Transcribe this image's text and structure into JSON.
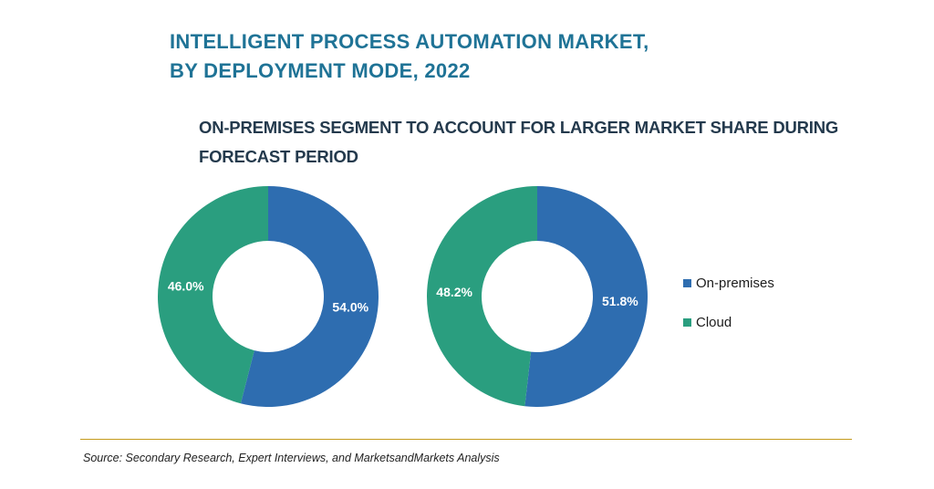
{
  "header": {
    "title_line1": "INTELLIGENT PROCESS AUTOMATION MARKET,",
    "title_line2": "BY DEPLOYMENT MODE, 2022",
    "subtitle_line1": "ON-PREMISES SEGMENT TO ACCOUNT FOR LARGER MARKET SHARE DURING",
    "subtitle_line2": "FORECAST PERIOD"
  },
  "colors": {
    "on_premises": "#2e6db0",
    "cloud": "#2a9e7f"
  },
  "chart_data": [
    {
      "type": "pie",
      "title": "",
      "categories": [
        "On-premises",
        "Cloud"
      ],
      "values": [
        54.0,
        46.0
      ],
      "labels": [
        "54.0%",
        "46.0%"
      ],
      "legend": "right"
    },
    {
      "type": "pie",
      "title": "",
      "categories": [
        "On-premises",
        "Cloud"
      ],
      "values": [
        51.8,
        48.2
      ],
      "labels": [
        "51.8%",
        "48.2%"
      ],
      "legend": "right"
    }
  ],
  "legend": {
    "items": [
      "On-premises",
      "Cloud"
    ]
  },
  "footer": {
    "source": "Source: Secondary Research, Expert Interviews, and MarketsandMarkets Analysis"
  }
}
